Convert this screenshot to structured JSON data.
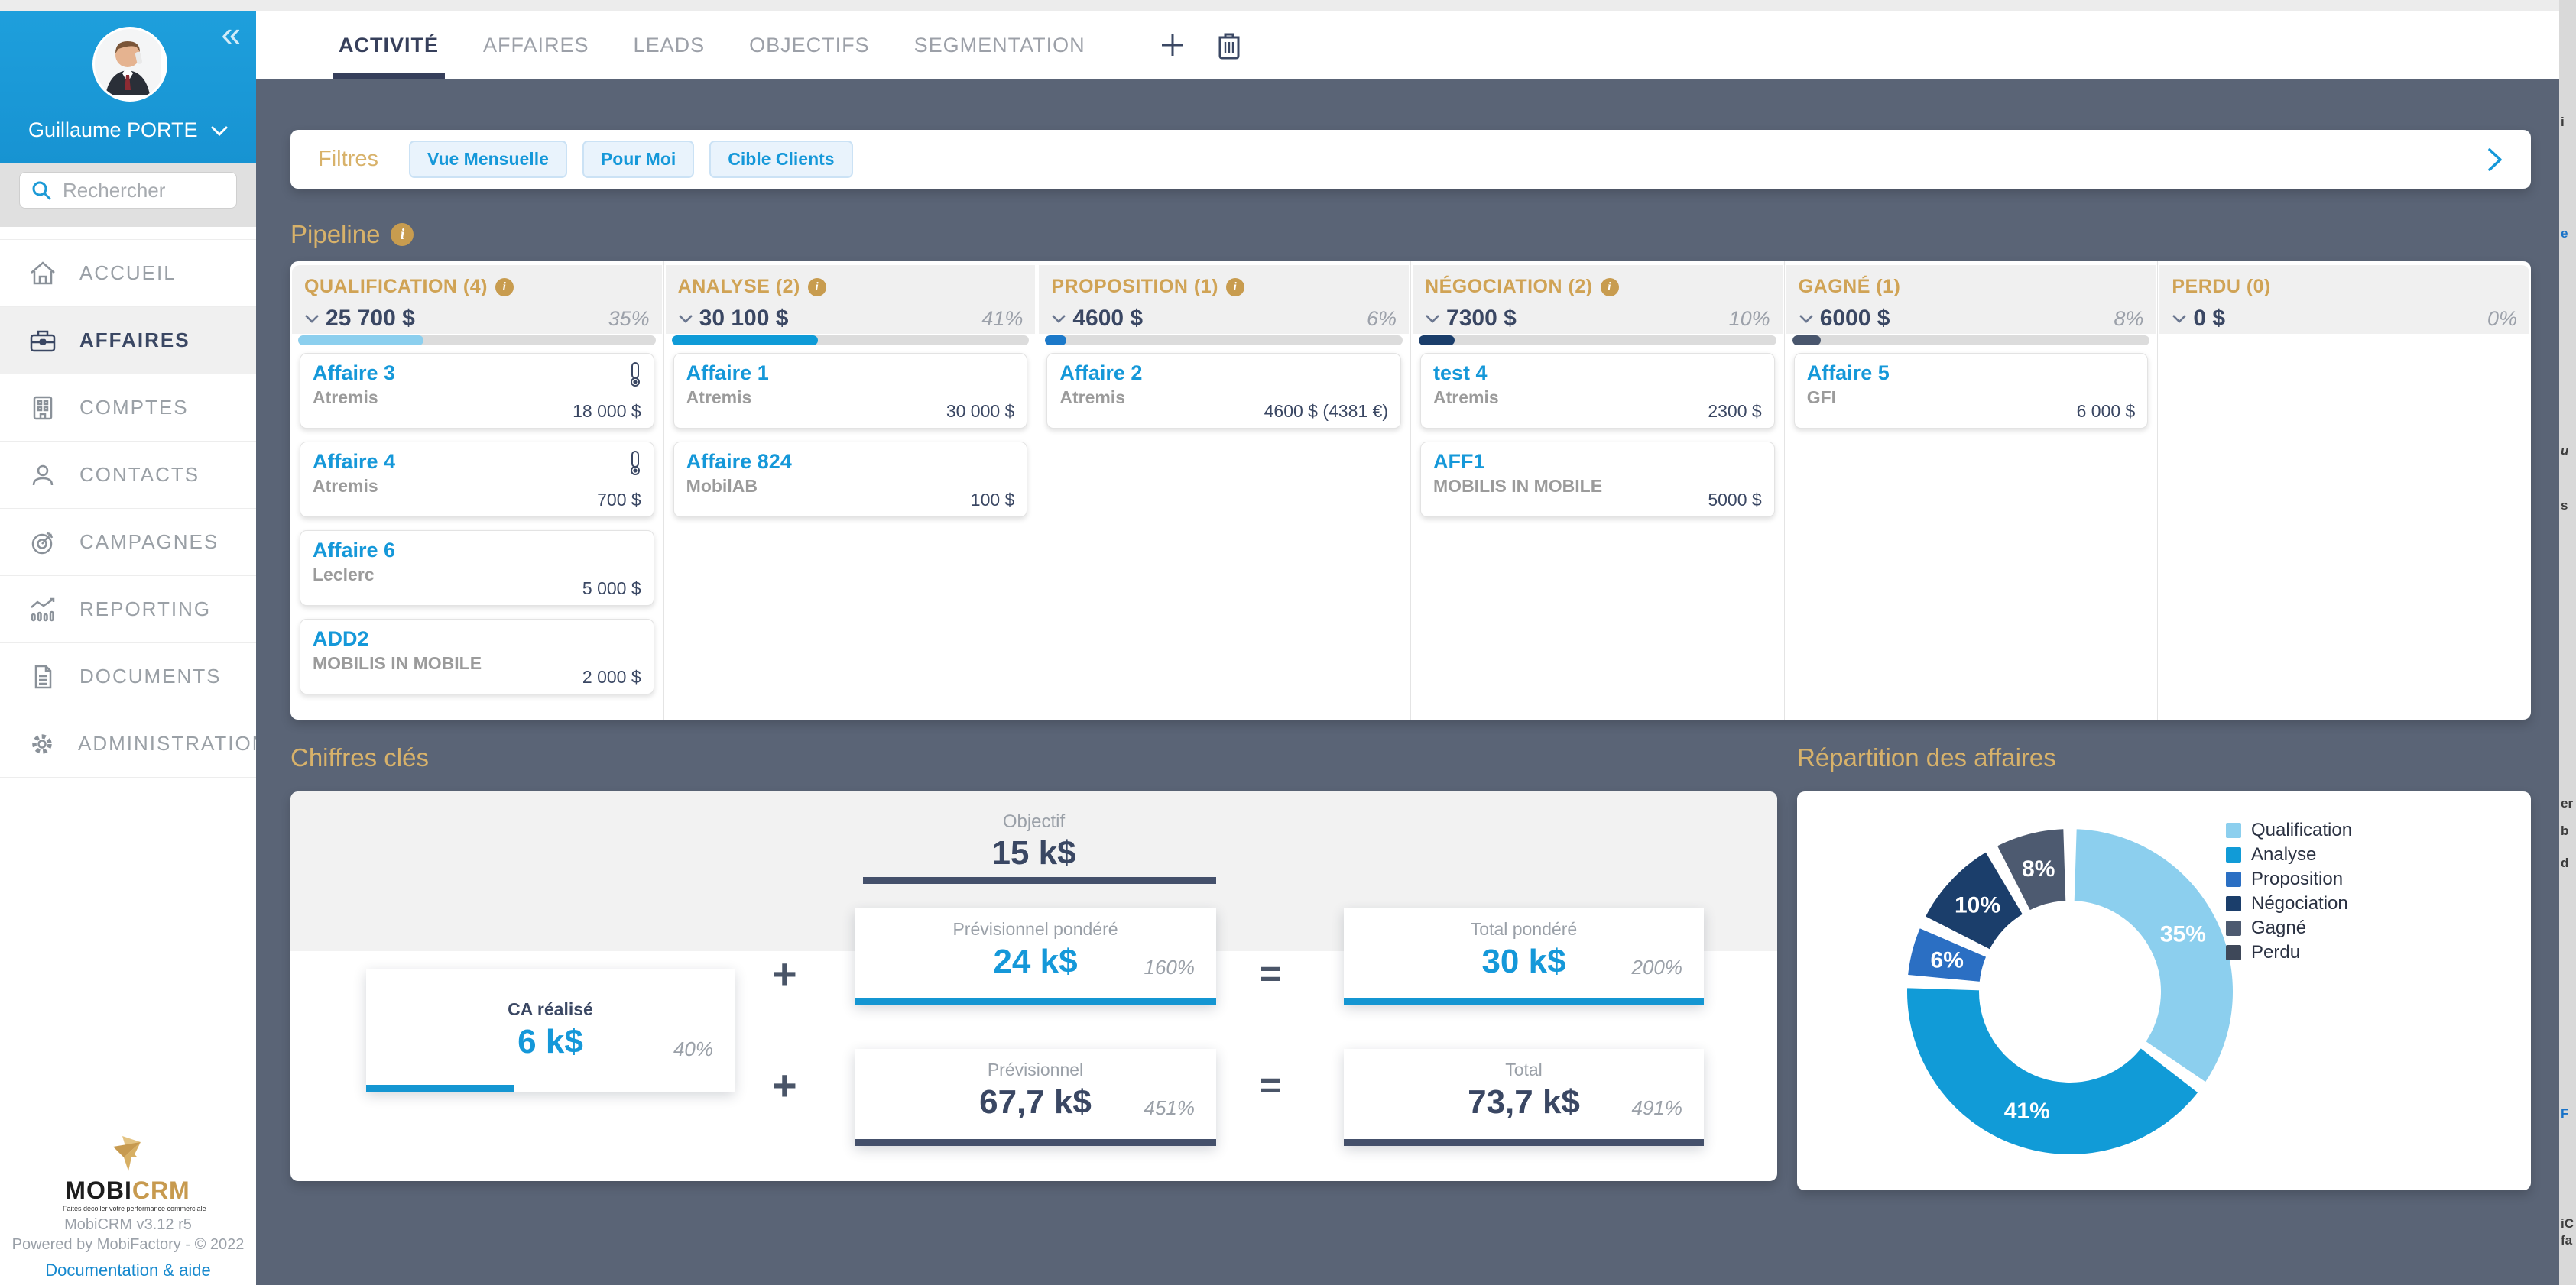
{
  "sidebar": {
    "user": {
      "name": "Guillaume PORTE"
    },
    "collapse_glyph": "«",
    "search": {
      "placeholder": "Rechercher"
    },
    "items": [
      {
        "label": "ACCUEIL"
      },
      {
        "label": "AFFAIRES"
      },
      {
        "label": "COMPTES"
      },
      {
        "label": "CONTACTS"
      },
      {
        "label": "CAMPAGNES"
      },
      {
        "label": "REPORTING"
      },
      {
        "label": "DOCUMENTS"
      },
      {
        "label": "ADMINISTRATION"
      }
    ],
    "footer": {
      "logo_part1": "MOBI",
      "logo_part2": "CRM",
      "tagline": "Faites décoller votre performance commerciale",
      "version": "MobiCRM v3.12 r5",
      "powered": "Powered by MobiFactory - © 2022",
      "help_link": "Documentation & aide"
    }
  },
  "topbar": {
    "tabs": [
      {
        "label": "ACTIVITÉ"
      },
      {
        "label": "AFFAIRES"
      },
      {
        "label": "LEADS"
      },
      {
        "label": "OBJECTIFS"
      },
      {
        "label": "SEGMENTATION"
      }
    ]
  },
  "filters": {
    "label": "Filtres",
    "chips": [
      {
        "label": "Vue Mensuelle"
      },
      {
        "label": "Pour Moi"
      },
      {
        "label": "Cible Clients"
      }
    ]
  },
  "pipeline": {
    "title": "Pipeline",
    "columns": [
      {
        "title": "QUALIFICATION (4)",
        "amount": "25 700 $",
        "percent": "35%",
        "bar_color": "#8CCFEE",
        "cards": [
          {
            "title": "Affaire 3",
            "subtitle": "Atremis",
            "amount": "18 000 $"
          },
          {
            "title": "Affaire 4",
            "subtitle": "Atremis",
            "amount": "700 $"
          },
          {
            "title": "Affaire 6",
            "subtitle": "Leclerc",
            "amount": "5 000 $"
          },
          {
            "title": "ADD2",
            "subtitle": "MOBILIS IN MOBILE",
            "amount": "2 000 $"
          }
        ]
      },
      {
        "title": "ANALYSE (2)",
        "amount": "30 100 $",
        "percent": "41%",
        "bar_color": "#0F9BD7",
        "cards": [
          {
            "title": "Affaire 1",
            "subtitle": "Atremis",
            "amount": "30 000 $"
          },
          {
            "title": "Affaire 824",
            "subtitle": "MobilAB",
            "amount": "100 $"
          }
        ]
      },
      {
        "title": "PROPOSITION (1)",
        "amount": "4600 $",
        "percent": "6%",
        "bar_color": "#1C79C9",
        "cards": [
          {
            "title": "Affaire 2",
            "subtitle": "Atremis",
            "amount": "4600 $ (4381 €)"
          }
        ]
      },
      {
        "title": "NÉGOCIATION (2)",
        "amount": "7300 $",
        "percent": "10%",
        "bar_color": "#1B3E6B",
        "cards": [
          {
            "title": "test 4",
            "subtitle": "Atremis",
            "amount": "2300 $"
          },
          {
            "title": "AFF1",
            "subtitle": "MOBILIS IN MOBILE",
            "amount": "5000 $"
          }
        ]
      },
      {
        "title": "GAGNÉ (1)",
        "amount": "6000 $",
        "percent": "8%",
        "bar_color": "#49566D",
        "cards": [
          {
            "title": "Affaire 5",
            "subtitle": "GFI",
            "amount": "6 000 $"
          }
        ]
      },
      {
        "title": "PERDU (0)",
        "amount": "0 $",
        "percent": "0%",
        "bar_color": "",
        "cards": []
      }
    ]
  },
  "key_figures": {
    "title": "Chiffres clés",
    "objective": {
      "label": "Objectif",
      "value": "15 k$"
    },
    "boxes": {
      "ca": {
        "label": "CA réalisé",
        "value": "6 k$",
        "percent": "40%",
        "bar_width": "40%"
      },
      "prev_pond": {
        "label": "Prévisionnel pondéré",
        "value": "24 k$",
        "percent": "160%"
      },
      "total_pond": {
        "label": "Total pondéré",
        "value": "30 k$",
        "percent": "200%"
      },
      "prev": {
        "label": "Prévisionnel",
        "value": "67,7 k$",
        "percent": "451%"
      },
      "total": {
        "label": "Total",
        "value": "73,7 k$",
        "percent": "491%"
      }
    },
    "operators": {
      "plus": "+",
      "equals": "="
    }
  },
  "distribution": {
    "title": "Répartition des affaires"
  },
  "chart_data": {
    "type": "pie",
    "donut": true,
    "title": "Répartition des affaires",
    "categories": [
      "Qualification",
      "Analyse",
      "Proposition",
      "Négociation",
      "Gagné",
      "Perdu"
    ],
    "values": [
      35,
      41,
      6,
      10,
      8,
      0
    ],
    "unit": "%",
    "labels": [
      "35%",
      "41%",
      "6%",
      "10%",
      "8%",
      ""
    ],
    "colors": [
      "#8CCFEE",
      "#119BD7",
      "#2B6FC3",
      "#1B3E6B",
      "#4D5A70",
      "#3E4859"
    ],
    "legend_position": "right"
  },
  "right_strip": {
    "fragments": [
      "i",
      "e",
      "u",
      "s",
      "er",
      "b",
      "d",
      "F",
      "iC",
      "fa"
    ]
  }
}
